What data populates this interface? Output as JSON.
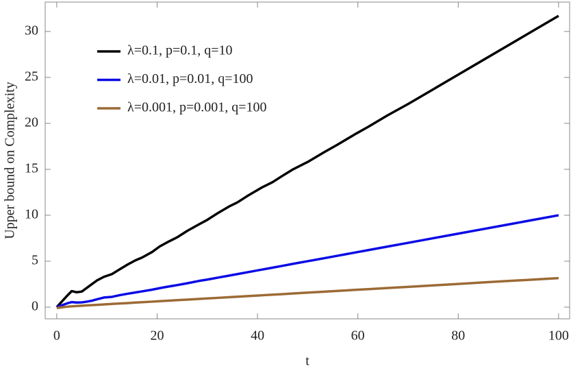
{
  "chart_data": {
    "type": "line",
    "xlabel": "t",
    "ylabel": "Upper bound on Complexity",
    "xlim": [
      -2.3,
      102.2
    ],
    "ylim": [
      -1.27,
      33.2
    ],
    "xticks": [
      0,
      20,
      40,
      60,
      80,
      100
    ],
    "yticks": [
      0,
      5,
      10,
      15,
      20,
      25,
      30
    ],
    "legend": "upper-left",
    "x": [
      0,
      1,
      2,
      3,
      4,
      5,
      6,
      7,
      8,
      9.4,
      11,
      12.5,
      14,
      15.7,
      17,
      19,
      20.5,
      22,
      24,
      26,
      28.3,
      30,
      32,
      34.5,
      36,
      38,
      40.8,
      43,
      45,
      47.1,
      50,
      53.4,
      56,
      59.7,
      62,
      66,
      70,
      75,
      80,
      85,
      90,
      95,
      100
    ],
    "series": [
      {
        "name": "λ=0.1, p=0.1, q=10",
        "color": "#000000",
        "values": [
          0,
          0.6,
          1.2,
          1.75,
          1.62,
          1.7,
          2.1,
          2.5,
          2.9,
          3.3,
          3.6,
          4.1,
          4.6,
          5.1,
          5.4,
          6.0,
          6.6,
          7.05,
          7.6,
          8.3,
          9.0,
          9.5,
          10.2,
          11.0,
          11.4,
          12.1,
          13.0,
          13.6,
          14.3,
          15.0,
          15.8,
          16.9,
          17.7,
          18.9,
          19.6,
          20.9,
          22.1,
          23.7,
          25.3,
          26.9,
          28.5,
          30.1,
          31.7
        ]
      },
      {
        "name": "λ=0.01, p=0.01, q=100",
        "color": "#0a0ae6",
        "values": [
          0,
          0.2,
          0.4,
          0.55,
          0.5,
          0.52,
          0.6,
          0.7,
          0.85,
          1.05,
          1.12,
          1.3,
          1.45,
          1.6,
          1.72,
          1.9,
          2.07,
          2.22,
          2.4,
          2.6,
          2.85,
          3.0,
          3.2,
          3.45,
          3.6,
          3.8,
          4.08,
          4.3,
          4.5,
          4.72,
          5.0,
          5.34,
          5.6,
          5.97,
          6.2,
          6.6,
          7.0,
          7.5,
          8.0,
          8.5,
          9.0,
          9.5,
          10.0
        ]
      },
      {
        "name": "λ=0.001, p=0.001, q=100",
        "color": "#9c6a35",
        "values": [
          -0.1,
          -0.02,
          0.05,
          0.09,
          0.13,
          0.16,
          0.19,
          0.22,
          0.25,
          0.3,
          0.35,
          0.4,
          0.44,
          0.5,
          0.54,
          0.6,
          0.65,
          0.7,
          0.76,
          0.82,
          0.89,
          0.95,
          1.01,
          1.09,
          1.14,
          1.2,
          1.29,
          1.36,
          1.42,
          1.49,
          1.58,
          1.69,
          1.77,
          1.89,
          1.96,
          2.09,
          2.21,
          2.37,
          2.53,
          2.69,
          2.85,
          3.0,
          3.16
        ]
      }
    ]
  }
}
